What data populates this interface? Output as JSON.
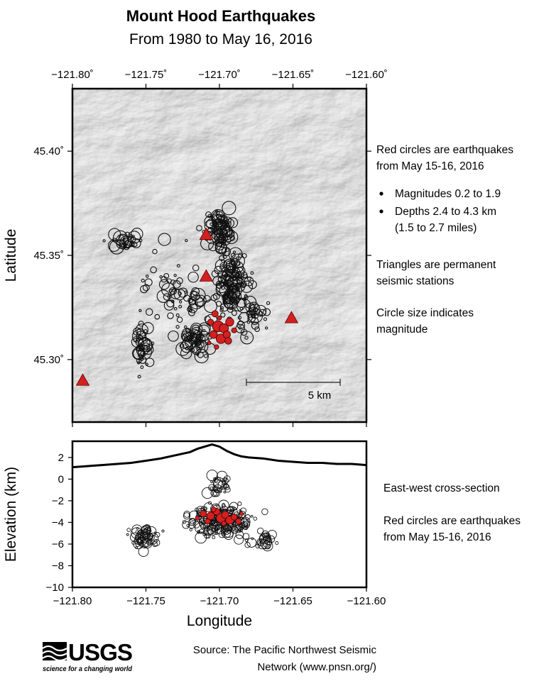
{
  "header": {
    "title": "Mount Hood Earthquakes",
    "subtitle": "From 1980 to May 16, 2016"
  },
  "chart_data": [
    {
      "type": "scatter",
      "name": "map",
      "xlabel": "",
      "ylabel": "Latitude",
      "xlim": [
        -121.8,
        -121.6
      ],
      "ylim": [
        45.27,
        45.43
      ],
      "x_ticks": [
        "−121.80˚",
        "−121.75˚",
        "−121.70˚",
        "−121.65˚",
        "−121.60˚"
      ],
      "x_tick_values": [
        -121.8,
        -121.75,
        -121.7,
        -121.65,
        -121.6
      ],
      "y_ticks": [
        "45.30˚",
        "45.35˚",
        "45.40˚"
      ],
      "y_tick_values": [
        45.3,
        45.35,
        45.4
      ],
      "background": "shaded relief terrain",
      "scale_bar": "5 km",
      "stations": [
        {
          "lon": -121.709,
          "lat": 45.36
        },
        {
          "lon": -121.709,
          "lat": 45.34
        },
        {
          "lon": -121.651,
          "lat": 45.32
        },
        {
          "lon": -121.793,
          "lat": 45.29
        }
      ],
      "recent_quakes": [
        {
          "lon": -121.701,
          "lat": 45.316,
          "mag": 1.9
        },
        {
          "lon": -121.697,
          "lat": 45.315,
          "mag": 1.5
        },
        {
          "lon": -121.704,
          "lat": 45.312,
          "mag": 1.2
        },
        {
          "lon": -121.693,
          "lat": 45.318,
          "mag": 1.3
        },
        {
          "lon": -121.699,
          "lat": 45.31,
          "mag": 1.6
        },
        {
          "lon": -121.703,
          "lat": 45.322,
          "mag": 0.9
        },
        {
          "lon": -121.695,
          "lat": 45.312,
          "mag": 1.1
        },
        {
          "lon": -121.69,
          "lat": 45.314,
          "mag": 0.6
        },
        {
          "lon": -121.706,
          "lat": 45.318,
          "mag": 0.8
        },
        {
          "lon": -121.702,
          "lat": 45.306,
          "mag": 0.5
        },
        {
          "lon": -121.694,
          "lat": 45.309,
          "mag": 1.0
        },
        {
          "lon": -121.7,
          "lat": 45.32,
          "mag": 0.4
        },
        {
          "lon": -121.707,
          "lat": 45.308,
          "mag": 0.3
        }
      ]
    },
    {
      "type": "scatter",
      "name": "cross-section",
      "xlabel": "Longitude",
      "ylabel": "Elevation (km)",
      "xlim": [
        -121.8,
        -121.6
      ],
      "ylim": [
        -10,
        3.5
      ],
      "x_ticks": [
        "−121.80",
        "−121.75",
        "−121.70",
        "−121.65",
        "−121.60"
      ],
      "x_tick_values": [
        -121.8,
        -121.75,
        -121.7,
        -121.65,
        -121.6
      ],
      "y_ticks": [
        "2",
        "0",
        "−2",
        "−4",
        "−6",
        "−8",
        "−10"
      ],
      "y_tick_values": [
        2,
        0,
        -2,
        -4,
        -6,
        -8,
        -10
      ],
      "topography": {
        "lon": [
          -121.8,
          -121.78,
          -121.76,
          -121.75,
          -121.74,
          -121.73,
          -121.72,
          -121.715,
          -121.71,
          -121.705,
          -121.7,
          -121.695,
          -121.69,
          -121.685,
          -121.68,
          -121.67,
          -121.66,
          -121.65,
          -121.64,
          -121.63,
          -121.62,
          -121.61,
          -121.6
        ],
        "elev": [
          1.1,
          1.3,
          1.5,
          1.7,
          1.9,
          2.2,
          2.5,
          2.8,
          3.0,
          3.2,
          3.0,
          2.6,
          2.3,
          2.1,
          2.0,
          1.9,
          1.7,
          1.6,
          1.5,
          1.5,
          1.4,
          1.4,
          1.3
        ]
      },
      "recent_quakes": [
        {
          "lon": -121.711,
          "depth": -3.2,
          "mag": 1.2
        },
        {
          "lon": -121.706,
          "depth": -3.4,
          "mag": 1.5
        },
        {
          "lon": -121.702,
          "depth": -3.0,
          "mag": 1.3
        },
        {
          "lon": -121.699,
          "depth": -3.6,
          "mag": 1.9
        },
        {
          "lon": -121.696,
          "depth": -3.3,
          "mag": 1.4
        },
        {
          "lon": -121.693,
          "depth": -3.8,
          "mag": 1.6
        },
        {
          "lon": -121.69,
          "depth": -3.5,
          "mag": 1.1
        },
        {
          "lon": -121.687,
          "depth": -3.9,
          "mag": 1.0
        },
        {
          "lon": -121.704,
          "depth": -2.8,
          "mag": 0.8
        },
        {
          "lon": -121.708,
          "depth": -3.9,
          "mag": 0.9
        },
        {
          "lon": -121.697,
          "depth": -4.1,
          "mag": 0.7
        },
        {
          "lon": -121.715,
          "depth": -3.6,
          "mag": 0.6
        },
        {
          "lon": -121.685,
          "depth": -3.2,
          "mag": 0.5
        }
      ]
    }
  ],
  "legend_map": {
    "line1": "Red circles are earthquakes",
    "line2": "from May 15-16, 2016",
    "bullet1": "Magnitudes 0.2 to 1.9",
    "bullet2": "Depths 2.4 to 4.3 km",
    "bullet2b": "(1.5 to 2.7 miles)",
    "tri1": "Triangles are permanent",
    "tri2": "seismic stations",
    "size1": "Circle size indicates",
    "size2": "magnitude"
  },
  "legend_xsec": {
    "line1": "East-west cross-section",
    "line2": "Red circles are earthquakes",
    "line3": "from May 15-16, 2016"
  },
  "footer": {
    "logo_text": "USGS",
    "logo_tagline": "science for a changing world",
    "source1": "Source: The Pacific Northwest Seismic",
    "source2": "Network (www.pnsn.org/)"
  },
  "colors": {
    "quake_recent": "#d42020",
    "station": "#d42020",
    "quake_outline": "#111111",
    "terrain_light": "#e8e8e8",
    "terrain_dark": "#8a8a8a"
  }
}
